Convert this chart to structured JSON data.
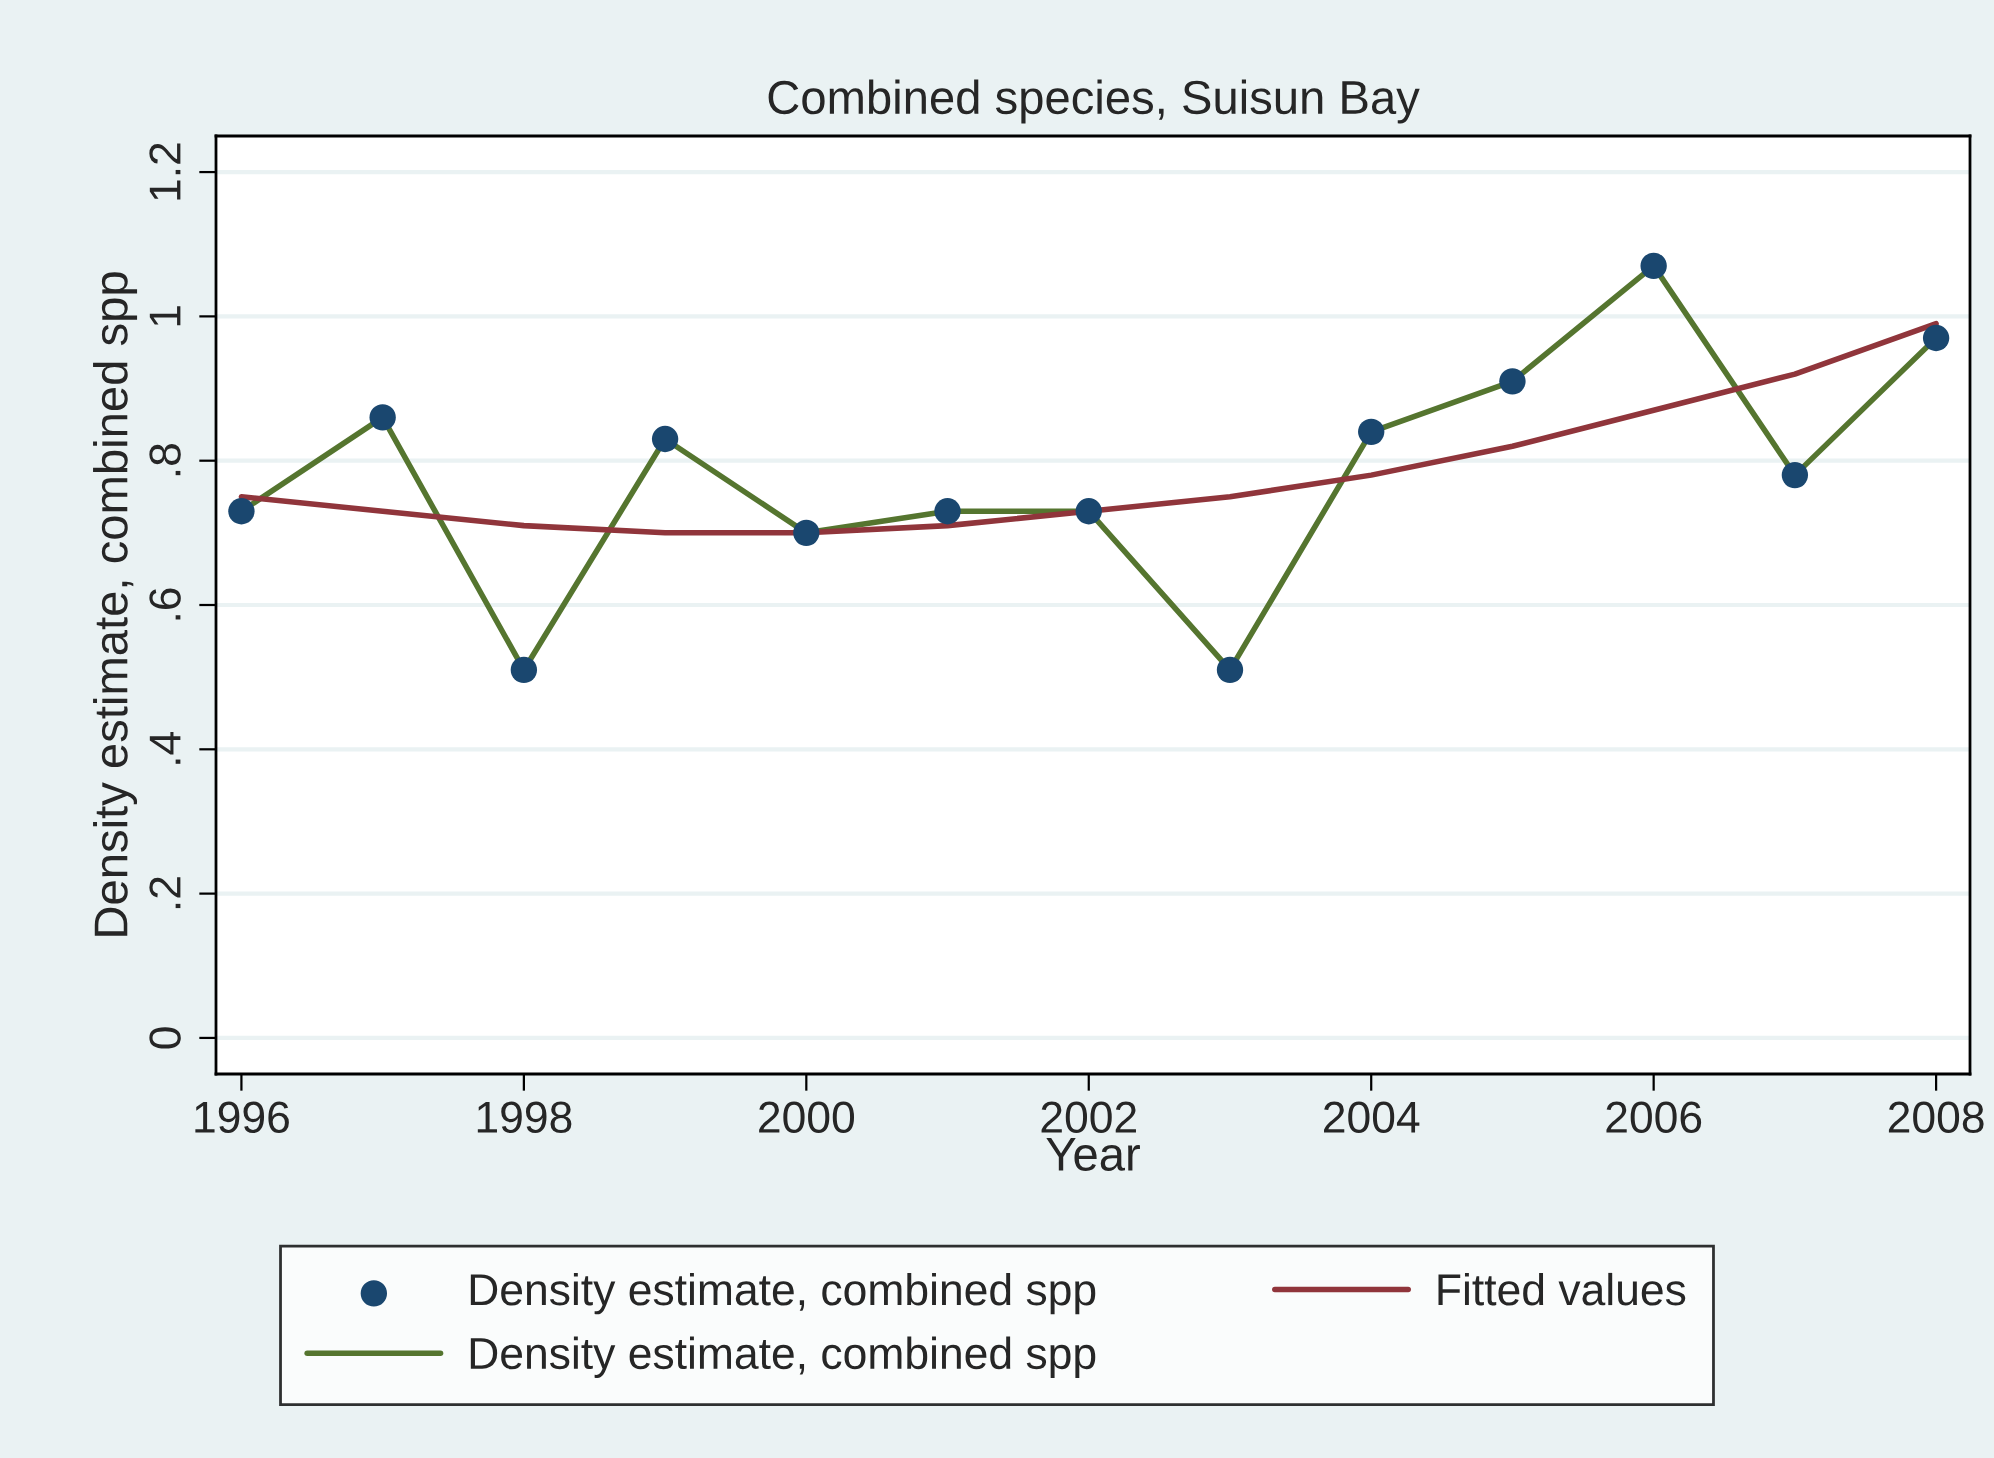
{
  "chart_data": {
    "type": "line",
    "title": "Combined species, Suisun Bay",
    "xlabel": "Year",
    "ylabel": "Density estimate, combined spp",
    "x": [
      1996,
      1997,
      1998,
      1999,
      2000,
      2001,
      2002,
      2003,
      2004,
      2005,
      2006,
      2007,
      2008
    ],
    "series": [
      {
        "name": "Density estimate, combined spp",
        "type": "scatter",
        "marker": "circle",
        "color": "#1a476f",
        "values": [
          0.73,
          0.86,
          0.51,
          0.83,
          0.7,
          0.73,
          0.73,
          0.51,
          0.84,
          0.91,
          1.07,
          0.78,
          0.97
        ]
      },
      {
        "name": "Density estimate, combined spp",
        "marker": "none",
        "color": "#55752f",
        "values": [
          0.73,
          0.86,
          0.51,
          0.83,
          0.7,
          0.73,
          0.73,
          0.51,
          0.84,
          0.91,
          1.07,
          0.78,
          0.97
        ]
      },
      {
        "name": "Fitted values",
        "marker": "none",
        "color": "#90353b",
        "values": [
          0.75,
          0.73,
          0.71,
          0.7,
          0.7,
          0.71,
          0.73,
          0.75,
          0.78,
          0.82,
          0.87,
          0.92,
          0.99
        ]
      }
    ],
    "xlim": [
      1995.82,
      2008.24
    ],
    "xticks": [
      1996,
      1998,
      2000,
      2002,
      2004,
      2006,
      2008
    ],
    "ylim": [
      -0.05,
      1.25
    ],
    "yticks": [
      0,
      {
        "value": 0.2,
        "label": ".2"
      },
      {
        "value": 0.4,
        "label": ".4"
      },
      {
        "value": 0.6,
        "label": ".6"
      },
      {
        "value": 0.8,
        "label": ".8"
      },
      1,
      {
        "value": 1.2,
        "label": "1.2"
      }
    ],
    "grid": "y",
    "legend": "bottom"
  }
}
